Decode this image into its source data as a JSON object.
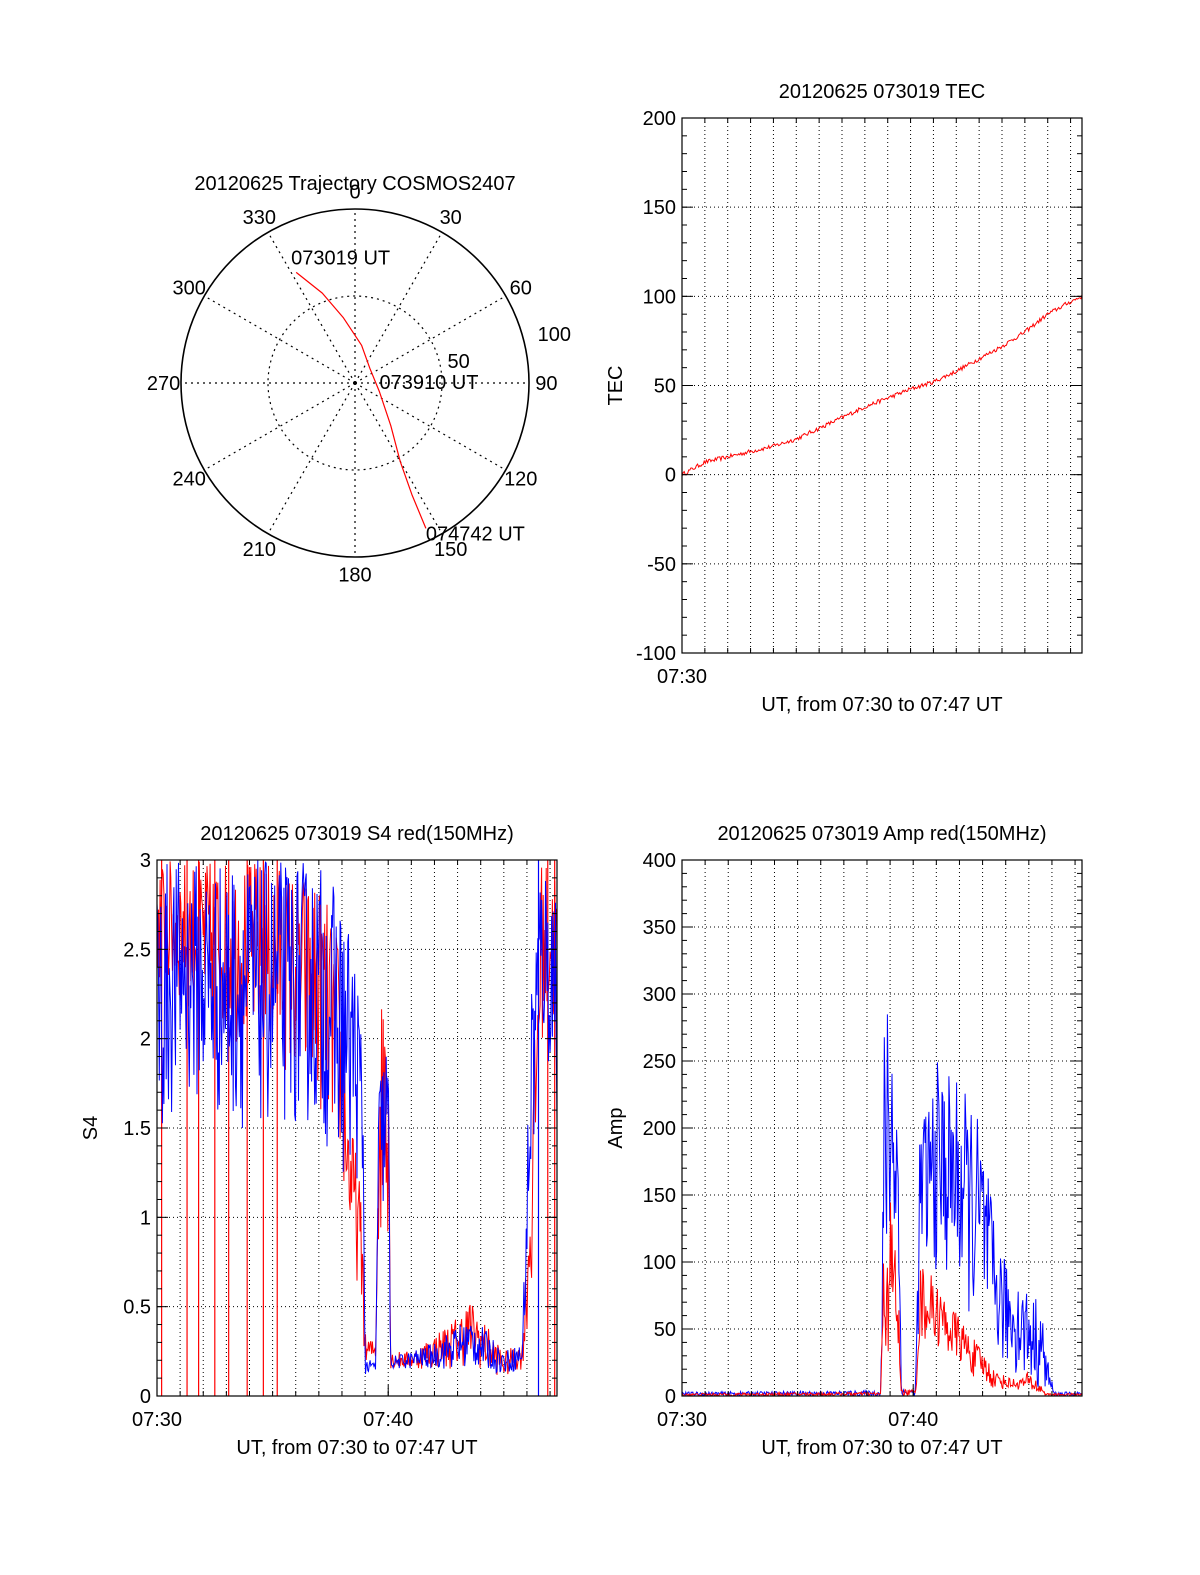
{
  "colors": {
    "red": "#ff0000",
    "blue": "#0000ff",
    "axis": "#000000",
    "grid": "#000000"
  },
  "chart_data": [
    {
      "id": "polar",
      "type": "polar",
      "title": "20120625 Trajectory COSMOS2407",
      "angle_labels": [
        "0",
        "30",
        "60",
        "90",
        "120",
        "150",
        "180",
        "210",
        "240",
        "270",
        "300",
        "330"
      ],
      "angle_values": [
        0,
        30,
        60,
        90,
        120,
        150,
        180,
        210,
        240,
        270,
        300,
        330
      ],
      "radial_labels": [
        "50",
        "100"
      ],
      "radial_values": [
        50,
        100
      ],
      "r_max": 100,
      "grid": true,
      "trajectory": {
        "color": "red",
        "points": [
          [
            332,
            72
          ],
          [
            340,
            55
          ],
          [
            350,
            38
          ],
          [
            10,
            22
          ],
          [
            45,
            12
          ],
          [
            110,
            15
          ],
          [
            140,
            32
          ],
          [
            150,
            52
          ],
          [
            153,
            72
          ],
          [
            154,
            93
          ]
        ]
      },
      "annotations": [
        {
          "text": "073019 UT",
          "az": 332,
          "r": 72,
          "dx": -5,
          "dy": -8
        },
        {
          "text": "073910 UT",
          "az": 110,
          "r": 15,
          "dx": 0,
          "dy": -3
        },
        {
          "text": "074742 UT",
          "az": 154,
          "r": 93,
          "dx": 0,
          "dy": 12
        }
      ]
    },
    {
      "id": "tec",
      "type": "line",
      "title": "20120625 073019 TEC",
      "xlabel": "UT, from 07:30 to 07:47 UT",
      "ylabel": "TEC",
      "xlim": [
        0,
        17.5
      ],
      "ylim": [
        -100,
        200
      ],
      "x_tick_values": [
        0
      ],
      "x_tick_labels": [
        "07:30"
      ],
      "x_minor_step": 1,
      "y_tick_values": [
        -100,
        -50,
        0,
        50,
        100,
        150,
        200
      ],
      "y_tick_labels": [
        "-100",
        "-50",
        "0",
        "50",
        "100",
        "150",
        "200"
      ],
      "y_minor_step": 10,
      "grid": true,
      "series": [
        {
          "color": "red",
          "noise": 1.2,
          "x": [
            0,
            1,
            2,
            3,
            4,
            5,
            6,
            7,
            8,
            9,
            10,
            11,
            12,
            13,
            14,
            15,
            16,
            17,
            17.5
          ],
          "y": [
            0,
            7,
            10,
            13,
            16,
            20,
            26,
            32,
            38,
            43,
            48,
            52,
            58,
            65,
            72,
            80,
            90,
            97,
            100
          ]
        }
      ]
    },
    {
      "id": "s4",
      "type": "line",
      "title": "20120625 073019 S4 red(150MHz)",
      "xlabel": "UT, from 07:30 to 07:47 UT",
      "ylabel": "S4",
      "xlim": [
        0,
        17.3
      ],
      "ylim": [
        0,
        3
      ],
      "x_tick_values": [
        0,
        10
      ],
      "x_tick_labels": [
        "07:30",
        "07:40"
      ],
      "x_minor_step": 1,
      "y_tick_values": [
        0,
        0.5,
        1,
        1.5,
        2,
        2.5,
        3
      ],
      "y_tick_labels": [
        "0",
        "0.5",
        "1",
        "1.5",
        "2",
        "2.5",
        "3"
      ],
      "y_minor_step": 0.1,
      "grid": true,
      "series": [
        {
          "color": "red",
          "envelope": [
            [
              0,
              2.3,
              3.0
            ],
            [
              1,
              2.2,
              3.0
            ],
            [
              3,
              2.0,
              3.0
            ],
            [
              5,
              1.9,
              3.0
            ],
            [
              7,
              1.6,
              2.9
            ],
            [
              7.8,
              1.4,
              2.6
            ],
            [
              8.3,
              0.9,
              1.6
            ],
            [
              8.7,
              0.6,
              1.3
            ],
            [
              8.9,
              0.4,
              1.0
            ],
            [
              9.0,
              0.15,
              0.35
            ],
            [
              9.45,
              0.2,
              0.3
            ],
            [
              9.6,
              0.8,
              2.0
            ],
            [
              10.0,
              0.9,
              3.0
            ],
            [
              10.1,
              0.15,
              0.25
            ],
            [
              11,
              0.15,
              0.25
            ],
            [
              12,
              0.15,
              0.35
            ],
            [
              13,
              0.15,
              0.45
            ],
            [
              13.5,
              0.18,
              0.55
            ],
            [
              14,
              0.15,
              0.45
            ],
            [
              15,
              0.1,
              0.25
            ],
            [
              15.8,
              0.15,
              0.3
            ],
            [
              16.2,
              0.5,
              1.5
            ],
            [
              16.6,
              2.0,
              3.0
            ],
            [
              17.3,
              2.0,
              3.0
            ]
          ],
          "spikes": [
            [
              0.2,
              0,
              3
            ],
            [
              1.3,
              0,
              3
            ],
            [
              1.8,
              0,
              3
            ],
            [
              2.5,
              0,
              3
            ],
            [
              3.1,
              0,
              3
            ],
            [
              3.9,
              0,
              3
            ],
            [
              4.6,
              0,
              3
            ],
            [
              5.2,
              0,
              3
            ],
            [
              16.9,
              0,
              3
            ],
            [
              17.2,
              0,
              3
            ]
          ]
        },
        {
          "color": "blue",
          "envelope": [
            [
              0,
              1.3,
              3.0
            ],
            [
              1,
              1.7,
              3.0
            ],
            [
              3,
              1.5,
              3.0
            ],
            [
              5,
              1.5,
              3.0
            ],
            [
              7,
              1.5,
              3.0
            ],
            [
              8,
              1.2,
              2.8
            ],
            [
              8.6,
              1.2,
              2.5
            ],
            [
              8.9,
              1.1,
              2.0
            ],
            [
              9.0,
              0.12,
              0.2
            ],
            [
              9.45,
              0.12,
              0.2
            ],
            [
              9.6,
              1.0,
              1.8
            ],
            [
              10.0,
              1.0,
              2.1
            ],
            [
              10.1,
              0.15,
              0.22
            ],
            [
              11,
              0.15,
              0.25
            ],
            [
              12,
              0.15,
              0.3
            ],
            [
              13,
              0.15,
              0.4
            ],
            [
              13.6,
              0.15,
              0.45
            ],
            [
              14,
              0.15,
              0.4
            ],
            [
              15,
              0.12,
              0.25
            ],
            [
              15.8,
              0.15,
              0.3
            ],
            [
              16.2,
              1.0,
              2.5
            ],
            [
              16.6,
              2.0,
              3.0
            ],
            [
              17.3,
              1.5,
              3.0
            ]
          ],
          "spikes": [
            [
              16.5,
              0,
              3
            ]
          ]
        }
      ]
    },
    {
      "id": "amp",
      "type": "line",
      "title": "20120625 073019 Amp red(150MHz)",
      "xlabel": "UT, from 07:30 to 07:47 UT",
      "ylabel": "Amp",
      "xlim": [
        0,
        17.3
      ],
      "ylim": [
        0,
        400
      ],
      "x_tick_values": [
        0,
        10
      ],
      "x_tick_labels": [
        "07:30",
        "07:40"
      ],
      "x_minor_step": 1,
      "y_tick_values": [
        0,
        50,
        100,
        150,
        200,
        250,
        300,
        350,
        400
      ],
      "y_tick_labels": [
        "0",
        "50",
        "100",
        "150",
        "200",
        "250",
        "300",
        "350",
        "400"
      ],
      "y_minor_step": 10,
      "grid": true,
      "series": [
        {
          "color": "blue",
          "envelope": [
            [
              0,
              0,
              3
            ],
            [
              8.6,
              0,
              4
            ],
            [
              8.75,
              50,
              280
            ],
            [
              8.95,
              80,
              320
            ],
            [
              9.3,
              90,
              260
            ],
            [
              9.5,
              0,
              5
            ],
            [
              10.1,
              0,
              5
            ],
            [
              10.3,
              80,
              210
            ],
            [
              11.0,
              90,
              250
            ],
            [
              11.8,
              80,
              240
            ],
            [
              12.5,
              60,
              220
            ],
            [
              13.0,
              40,
              200
            ],
            [
              13.5,
              30,
              130
            ],
            [
              14.0,
              20,
              100
            ],
            [
              14.5,
              15,
              90
            ],
            [
              15.0,
              10,
              80
            ],
            [
              15.5,
              5,
              70
            ],
            [
              15.9,
              0,
              20
            ],
            [
              16.1,
              0,
              3
            ],
            [
              17.3,
              0,
              3
            ]
          ]
        },
        {
          "color": "red",
          "envelope": [
            [
              0,
              0,
              2
            ],
            [
              8.6,
              0,
              3
            ],
            [
              8.75,
              20,
              140
            ],
            [
              9.0,
              30,
              150
            ],
            [
              9.3,
              25,
              110
            ],
            [
              9.5,
              0,
              5
            ],
            [
              10.1,
              0,
              5
            ],
            [
              10.3,
              40,
              100
            ],
            [
              10.8,
              40,
              90
            ],
            [
              11.5,
              30,
              70
            ],
            [
              12.0,
              25,
              60
            ],
            [
              12.5,
              15,
              45
            ],
            [
              13.0,
              10,
              35
            ],
            [
              13.5,
              5,
              20
            ],
            [
              14.0,
              5,
              15
            ],
            [
              14.5,
              5,
              12
            ],
            [
              15.0,
              3,
              18
            ],
            [
              15.5,
              0,
              10
            ],
            [
              15.8,
              0,
              2
            ],
            [
              17.3,
              0,
              2
            ]
          ]
        }
      ]
    }
  ]
}
